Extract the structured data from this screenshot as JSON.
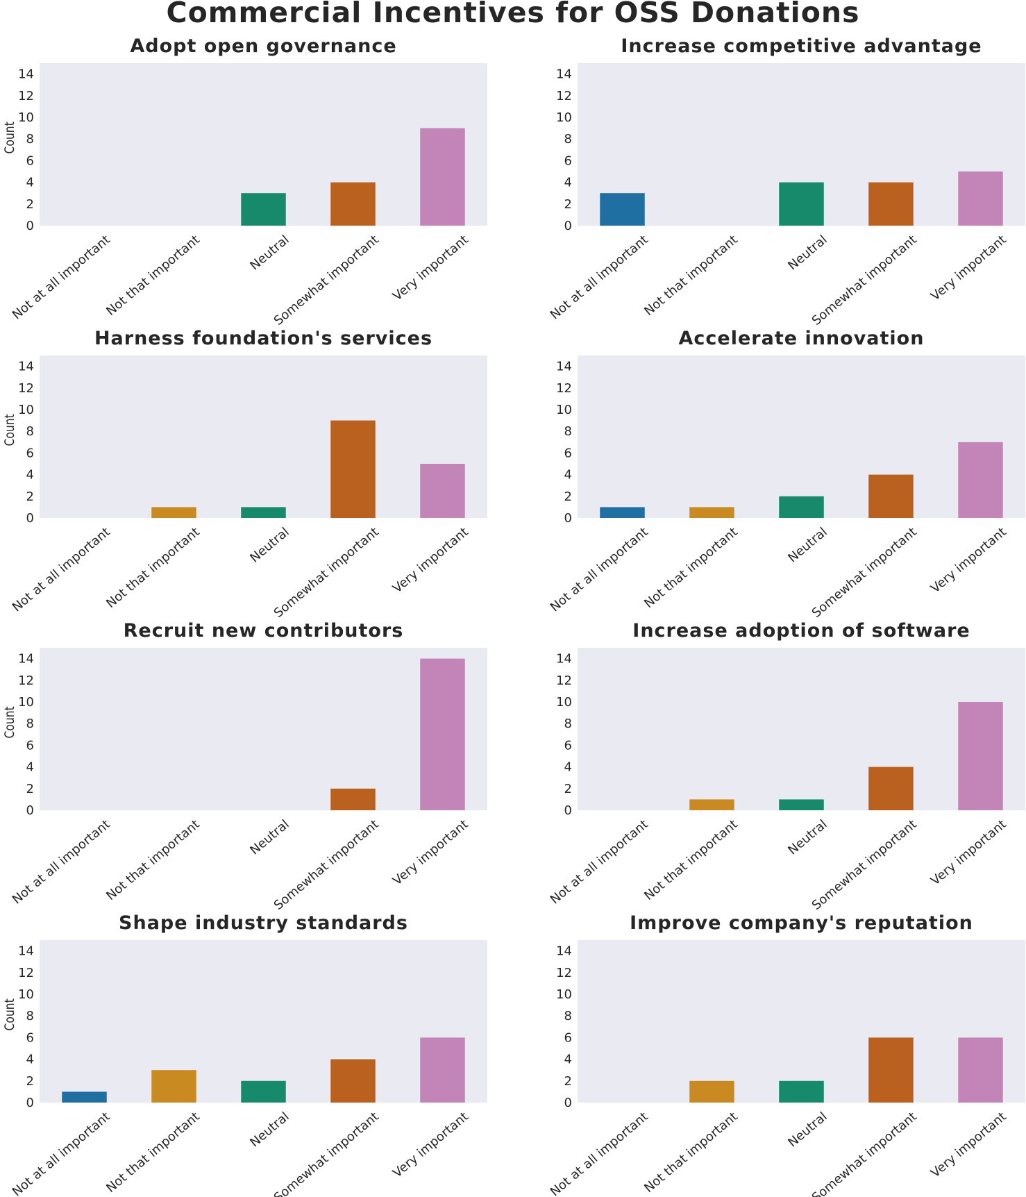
{
  "title": "Commercial Incentives for OSS Donations",
  "colors": {
    "background": "#eaeaf2",
    "categories": [
      "#1f6fa3",
      "#c98a22",
      "#168a6a",
      "#bb6120",
      "#c385b8"
    ]
  },
  "chart_data": [
    {
      "type": "bar",
      "title": "Adopt open governance",
      "ylabel": "Count",
      "categories": [
        "Not at all important",
        "Not that important",
        "Neutral",
        "Somewhat important",
        "Very important"
      ],
      "values": [
        0,
        0,
        3,
        4,
        9
      ],
      "ylim": [
        0,
        15
      ],
      "yticks": [
        "0",
        "2",
        "4",
        "6",
        "8",
        "10",
        "12",
        "14"
      ],
      "grid": false
    },
    {
      "type": "bar",
      "title": "Increase competitive advantage",
      "ylabel": "",
      "categories": [
        "Not at all important",
        "Not that important",
        "Neutral",
        "Somewhat important",
        "Very important"
      ],
      "values": [
        3,
        0,
        4,
        4,
        5
      ],
      "ylim": [
        0,
        15
      ],
      "yticks": [
        "0",
        "2",
        "4",
        "6",
        "8",
        "10",
        "12",
        "14"
      ],
      "grid": false
    },
    {
      "type": "bar",
      "title": "Harness foundation's services",
      "ylabel": "Count",
      "categories": [
        "Not at all important",
        "Not that important",
        "Neutral",
        "Somewhat important",
        "Very important"
      ],
      "values": [
        0,
        1,
        1,
        9,
        5
      ],
      "ylim": [
        0,
        15
      ],
      "yticks": [
        "0",
        "2",
        "4",
        "6",
        "8",
        "10",
        "12",
        "14"
      ],
      "grid": false
    },
    {
      "type": "bar",
      "title": "Accelerate innovation",
      "ylabel": "",
      "categories": [
        "Not at all important",
        "Not that important",
        "Neutral",
        "Somewhat important",
        "Very important"
      ],
      "values": [
        1,
        1,
        2,
        4,
        7
      ],
      "ylim": [
        0,
        15
      ],
      "yticks": [
        "0",
        "2",
        "4",
        "6",
        "8",
        "10",
        "12",
        "14"
      ],
      "grid": false
    },
    {
      "type": "bar",
      "title": "Recruit new contributors",
      "ylabel": "Count",
      "categories": [
        "Not at all important",
        "Not that important",
        "Neutral",
        "Somewhat important",
        "Very important"
      ],
      "values": [
        0,
        0,
        0,
        2,
        14
      ],
      "ylim": [
        0,
        15
      ],
      "yticks": [
        "0",
        "2",
        "4",
        "6",
        "8",
        "10",
        "12",
        "14"
      ],
      "grid": false
    },
    {
      "type": "bar",
      "title": "Increase adoption of software",
      "ylabel": "",
      "categories": [
        "Not at all important",
        "Not that important",
        "Neutral",
        "Somewhat important",
        "Very important"
      ],
      "values": [
        0,
        1,
        1,
        4,
        10
      ],
      "ylim": [
        0,
        15
      ],
      "yticks": [
        "0",
        "2",
        "4",
        "6",
        "8",
        "10",
        "12",
        "14"
      ],
      "grid": false
    },
    {
      "type": "bar",
      "title": "Shape industry standards",
      "ylabel": "Count",
      "categories": [
        "Not at all important",
        "Not that important",
        "Neutral",
        "Somewhat important",
        "Very important"
      ],
      "values": [
        1,
        3,
        2,
        4,
        6
      ],
      "ylim": [
        0,
        15
      ],
      "yticks": [
        "0",
        "2",
        "4",
        "6",
        "8",
        "10",
        "12",
        "14"
      ],
      "grid": false
    },
    {
      "type": "bar",
      "title": "Improve company's reputation",
      "ylabel": "",
      "categories": [
        "Not at all important",
        "Not that important",
        "Neutral",
        "Somewhat important",
        "Very important"
      ],
      "values": [
        0,
        2,
        2,
        6,
        6
      ],
      "ylim": [
        0,
        15
      ],
      "yticks": [
        "0",
        "2",
        "4",
        "6",
        "8",
        "10",
        "12",
        "14"
      ],
      "grid": false
    }
  ]
}
